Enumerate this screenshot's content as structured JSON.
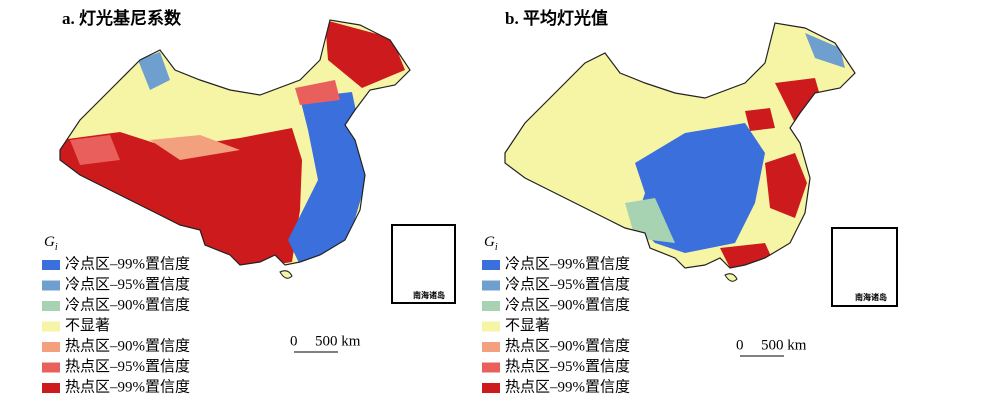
{
  "panels": [
    {
      "title": "a. 灯光基尼系数",
      "legend": {
        "symbol": "G",
        "subscript": "i",
        "items": [
          {
            "label": "冷点区–99%置信度",
            "color": "#3b6fdc"
          },
          {
            "label": "冷点区–95%置信度",
            "color": "#6f9fcf"
          },
          {
            "label": "冷点区–90%置信度",
            "color": "#a8d3b2"
          },
          {
            "label": "不显著",
            "color": "#f6f5a6"
          },
          {
            "label": "热点区–90%置信度",
            "color": "#f3a07e"
          },
          {
            "label": "热点区–95%置信度",
            "color": "#e85f5c"
          },
          {
            "label": "热点区–99%置信度",
            "color": "#cc1a1d"
          }
        ]
      },
      "scale": {
        "start": "0",
        "end": "500 km"
      },
      "inset_label": "南海诸岛"
    },
    {
      "title": "b. 平均灯光值",
      "legend": {
        "symbol": "G",
        "subscript": "i",
        "items": [
          {
            "label": "冷点区–99%置信度",
            "color": "#3b6fdc"
          },
          {
            "label": "冷点区–95%置信度",
            "color": "#6f9fcf"
          },
          {
            "label": "冷点区–90%置信度",
            "color": "#a8d3b2"
          },
          {
            "label": "不显著",
            "color": "#f6f5a6"
          },
          {
            "label": "热点区–90%置信度",
            "color": "#f3a07e"
          },
          {
            "label": "热点区–95%置信度",
            "color": "#e85f5c"
          },
          {
            "label": "热点区–99%置信度",
            "color": "#cc1a1d"
          }
        ]
      },
      "scale": {
        "start": "0",
        "end": "500 km"
      },
      "inset_label": "南海诸岛"
    }
  ]
}
